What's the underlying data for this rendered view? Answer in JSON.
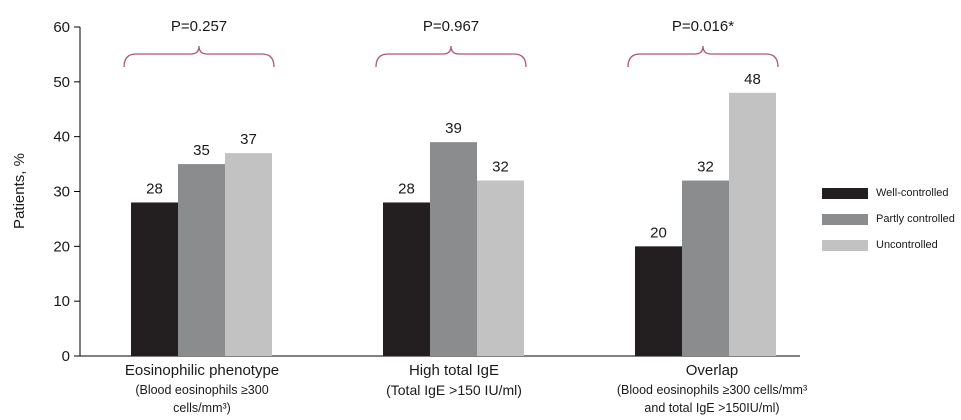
{
  "chart_data": {
    "type": "bar",
    "ylabel": "Patients, %",
    "ylim": [
      0,
      60
    ],
    "yticks": [
      0,
      10,
      20,
      30,
      40,
      50,
      60
    ],
    "groups": [
      {
        "title": "Eosinophilic  phenotype",
        "subtitle_lines": [
          "(Blood eosinophils ≥300",
          "cells/mm³)"
        ],
        "p_value": "P=0.257",
        "values": [
          28,
          35,
          37
        ]
      },
      {
        "title": "High total IgE",
        "subtitle_lines": [
          "(Total IgE >150 IU/ml)"
        ],
        "p_value": "P=0.967",
        "values": [
          28,
          39,
          32
        ]
      },
      {
        "title": "Overlap",
        "subtitle_lines": [
          "(Blood eosinophils ≥300 cells/mm³",
          "and total IgE >150IU/ml)"
        ],
        "p_value": "P=0.016*",
        "values": [
          20,
          32,
          48
        ]
      }
    ],
    "series": [
      {
        "name": "Well-controlled",
        "color": "#231f20"
      },
      {
        "name": "Partly controlled",
        "color": "#8a8c8e"
      },
      {
        "name": "Uncontrolled",
        "color": "#c2c2c2"
      }
    ],
    "bracket_color": "#b0577e",
    "grid": false,
    "legend_position": "right"
  }
}
